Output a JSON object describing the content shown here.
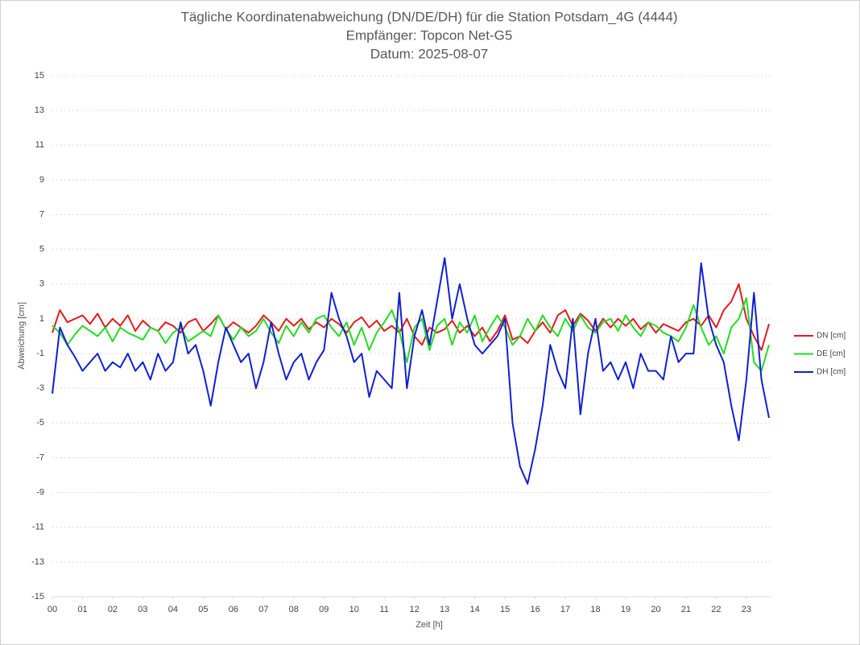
{
  "chart_data": {
    "type": "line",
    "title": "Tägliche Koordinatenabweichung (DN/DE/DH) für die Station Potsdam_4G (4444)",
    "subtitle": [
      "Empfänger: Topcon Net-G5",
      "Datum: 2025-08-07"
    ],
    "x_label": "Zeit [h]",
    "y_label": "Abweichung [cm]",
    "x": [
      0,
      0.25,
      0.5,
      0.75,
      1,
      1.25,
      1.5,
      1.75,
      2,
      2.25,
      2.5,
      2.75,
      3,
      3.25,
      3.5,
      3.75,
      4,
      4.25,
      4.5,
      4.75,
      5,
      5.25,
      5.5,
      5.75,
      6,
      6.25,
      6.5,
      6.75,
      7,
      7.25,
      7.5,
      7.75,
      8,
      8.25,
      8.5,
      8.75,
      9,
      9.25,
      9.5,
      9.75,
      10,
      10.25,
      10.5,
      10.75,
      11,
      11.25,
      11.5,
      11.75,
      12,
      12.25,
      12.5,
      12.75,
      13,
      13.25,
      13.5,
      13.75,
      14,
      14.25,
      14.5,
      14.75,
      15,
      15.25,
      15.5,
      15.75,
      16,
      16.25,
      16.5,
      16.75,
      17,
      17.25,
      17.5,
      17.75,
      18,
      18.25,
      18.5,
      18.75,
      19,
      19.25,
      19.5,
      19.75,
      20,
      20.25,
      20.5,
      20.75,
      21,
      21.25,
      21.5,
      21.75,
      22,
      22.25,
      22.5,
      22.75,
      23,
      23.25,
      23.5,
      23.75
    ],
    "xlim": [
      0,
      23.83
    ],
    "xticks": [
      {
        "value": 0,
        "label": "00"
      },
      {
        "value": 1,
        "label": "01"
      },
      {
        "value": 2,
        "label": "02"
      },
      {
        "value": 3,
        "label": "03"
      },
      {
        "value": 4,
        "label": "04"
      },
      {
        "value": 5,
        "label": "05"
      },
      {
        "value": 6,
        "label": "06"
      },
      {
        "value": 7,
        "label": "07"
      },
      {
        "value": 8,
        "label": "08"
      },
      {
        "value": 9,
        "label": "09"
      },
      10,
      11,
      12,
      13,
      14,
      15,
      16,
      17,
      18,
      19,
      20,
      21,
      22,
      23
    ],
    "ylim": [
      -15,
      15
    ],
    "yticks": [
      -15,
      -13,
      -11,
      -9,
      -7,
      -5,
      -3,
      -1,
      1,
      3,
      5,
      7,
      9,
      11,
      13,
      15
    ],
    "grid": true,
    "legend": "right",
    "series": [
      {
        "name": "DN [cm]",
        "color": "#e31a1c",
        "values": [
          0.2,
          1.5,
          0.8,
          1.0,
          1.2,
          0.7,
          1.3,
          0.5,
          1.0,
          0.6,
          1.2,
          0.3,
          0.9,
          0.5,
          0.3,
          0.8,
          0.6,
          0.2,
          0.8,
          1.0,
          0.3,
          0.7,
          1.2,
          0.4,
          0.8,
          0.5,
          0.2,
          0.6,
          1.2,
          0.8,
          0.3,
          1.0,
          0.6,
          1.0,
          0.4,
          0.8,
          0.5,
          1.0,
          0.7,
          0.2,
          0.8,
          1.1,
          0.5,
          0.9,
          0.3,
          0.6,
          0.2,
          1.0,
          0.0,
          -0.5,
          0.5,
          0.2,
          0.4,
          0.9,
          0.2,
          0.6,
          0.0,
          0.5,
          -0.3,
          0.3,
          1.2,
          -0.2,
          0.0,
          -0.4,
          0.3,
          0.8,
          0.2,
          1.2,
          1.5,
          0.6,
          1.3,
          0.9,
          0.3,
          1.0,
          0.5,
          1.0,
          0.6,
          1.0,
          0.4,
          0.8,
          0.2,
          0.7,
          0.5,
          0.3,
          0.8,
          1.0,
          0.6,
          1.2,
          0.5,
          1.5,
          2.0,
          3.0,
          1.0,
          0.0,
          -0.8,
          0.7
        ]
      },
      {
        "name": "DE [cm]",
        "color": "#22dd22",
        "values": [
          0.6,
          0.2,
          -0.5,
          0.1,
          0.6,
          0.3,
          0.0,
          0.5,
          -0.3,
          0.5,
          0.2,
          0.0,
          -0.2,
          0.5,
          0.3,
          -0.4,
          0.2,
          0.5,
          -0.3,
          0.0,
          0.3,
          0.0,
          1.2,
          0.4,
          -0.2,
          0.5,
          0.0,
          0.3,
          1.0,
          0.2,
          -0.4,
          0.6,
          0.0,
          0.8,
          0.2,
          1.0,
          1.2,
          0.5,
          0.0,
          0.8,
          -0.5,
          0.5,
          -0.8,
          0.2,
          0.8,
          1.5,
          0.3,
          -1.5,
          0.5,
          1.0,
          -0.8,
          0.6,
          1.0,
          -0.5,
          0.8,
          0.2,
          1.2,
          -0.3,
          0.5,
          1.2,
          0.5,
          -0.5,
          0.0,
          1.0,
          0.3,
          1.2,
          0.5,
          0.0,
          1.0,
          0.3,
          1.2,
          0.5,
          0.2,
          0.8,
          1.0,
          0.3,
          1.2,
          0.5,
          0.0,
          0.8,
          0.6,
          0.2,
          0.0,
          -0.3,
          0.5,
          1.8,
          0.5,
          -0.5,
          0.0,
          -1.0,
          0.5,
          1.0,
          2.2,
          -1.5,
          -2.0,
          -0.5
        ]
      },
      {
        "name": "DH [cm]",
        "color": "#1020d0",
        "values": [
          -3.3,
          0.5,
          -0.5,
          -1.2,
          -2,
          -1.5,
          -1,
          -2,
          -1.5,
          -1.8,
          -1,
          -2,
          -1.5,
          -2.5,
          -1,
          -2,
          -1.5,
          0.8,
          -1,
          -0.5,
          -2,
          -4,
          -1.5,
          0.5,
          -0.5,
          -1.5,
          -1,
          -3,
          -1.5,
          0.8,
          -1,
          -2.5,
          -1.5,
          -1,
          -2.5,
          -1.5,
          -0.8,
          2.5,
          1,
          0,
          -1.5,
          -1,
          -3.5,
          -2,
          -2.5,
          -3,
          2.5,
          -3,
          0,
          1.5,
          -0.5,
          2,
          4.5,
          1,
          3,
          1,
          -0.5,
          -1,
          -0.5,
          0,
          1,
          -5,
          -7.5,
          -8.5,
          -6.5,
          -4,
          -0.5,
          -2,
          -3,
          1,
          -4.5,
          -1,
          1,
          -2,
          -1.5,
          -2.5,
          -1.5,
          -3,
          -1,
          -2,
          -2,
          -2.5,
          0,
          -1.5,
          -1,
          -1,
          4.2,
          1,
          -0.5,
          -1.5,
          -4,
          -6,
          -2.5,
          2.5,
          -2.5,
          -4.7
        ]
      }
    ]
  }
}
